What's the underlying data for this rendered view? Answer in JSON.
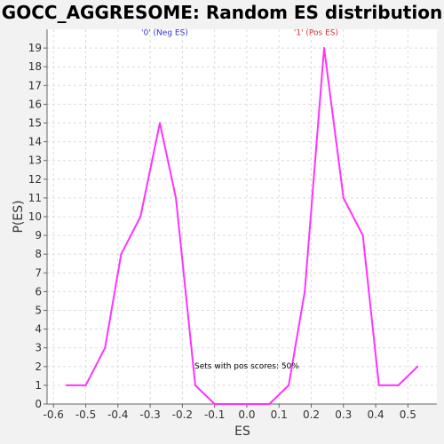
{
  "chart_data": {
    "type": "line",
    "title": "GOCC_AGGRESOME: Random ES distribution",
    "xlabel": "ES",
    "ylabel": "P(ES)",
    "xlim": [
      -0.62,
      0.59
    ],
    "ylim": [
      0,
      20
    ],
    "x_ticks": [
      "-0.6",
      "-0.5",
      "-0.4",
      "-0.3",
      "-0.2",
      "-0.1",
      "0.0",
      "0.1",
      "0.2",
      "0.3",
      "0.4",
      "0.5"
    ],
    "x_tick_values": [
      -0.6,
      -0.5,
      -0.4,
      -0.3,
      -0.2,
      -0.1,
      0.0,
      0.1,
      0.2,
      0.3,
      0.4,
      0.5
    ],
    "y_ticks": [
      0,
      1,
      2,
      3,
      4,
      5,
      6,
      7,
      8,
      9,
      10,
      11,
      12,
      13,
      14,
      15,
      16,
      17,
      18,
      19
    ],
    "grid": true,
    "series": [
      {
        "color": "#ff33ff",
        "x": [
          -0.56,
          -0.5,
          -0.44,
          -0.39,
          -0.33,
          -0.27,
          -0.22,
          -0.16,
          -0.1,
          -0.04,
          0.01,
          0.07,
          0.13,
          0.18,
          0.24,
          0.3,
          0.36,
          0.41,
          0.47,
          0.53
        ],
        "y": [
          1,
          1,
          3,
          8,
          10,
          15,
          11,
          1,
          0,
          0,
          0,
          0,
          1,
          6,
          19,
          11,
          9,
          1,
          1,
          2
        ]
      }
    ],
    "annotations": [
      {
        "text": "'0' (Neg ES)",
        "x": -0.255,
        "y": 19.7,
        "color": "#3333cc"
      },
      {
        "text": "'1' (Pos ES)",
        "x": 0.215,
        "y": 19.7,
        "color": "#cc3333"
      },
      {
        "text": "Sets with pos scores: 50%",
        "x": 0.0,
        "y": 1.9,
        "color": "#000000"
      }
    ]
  }
}
